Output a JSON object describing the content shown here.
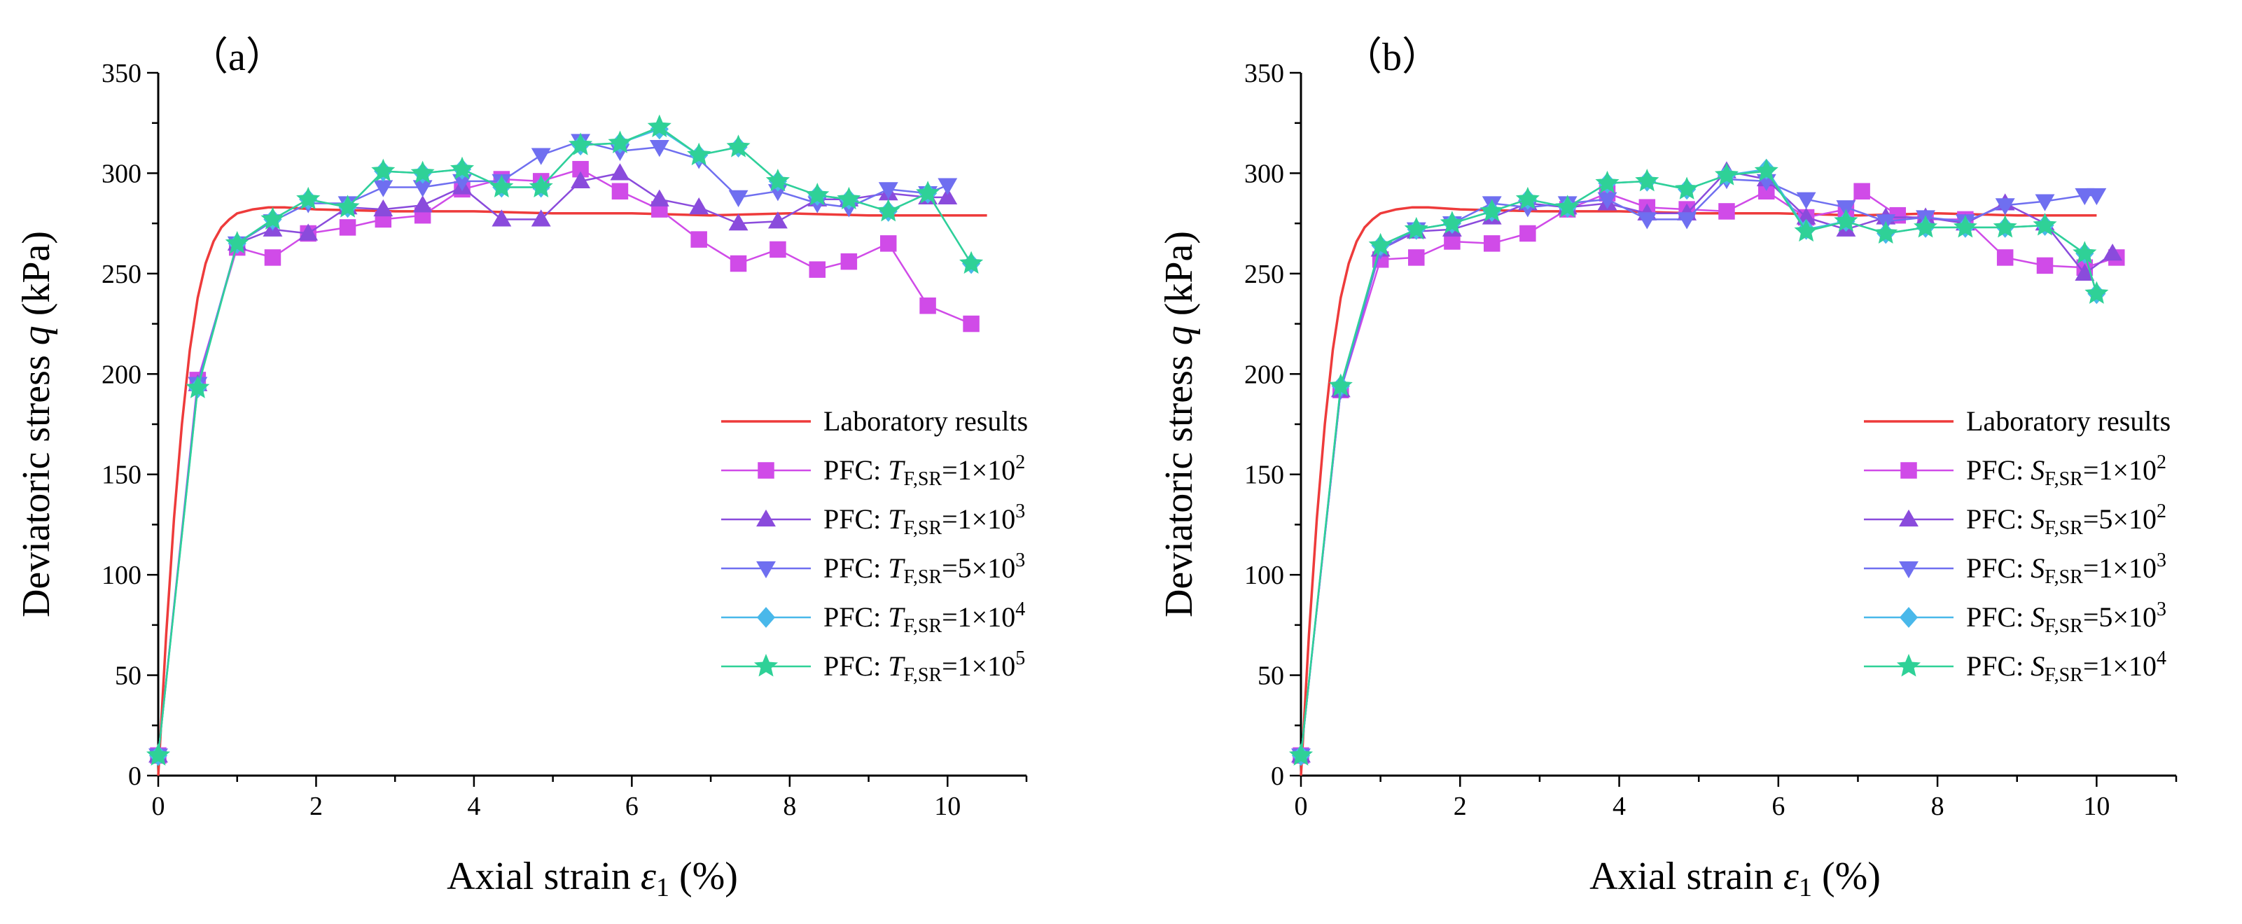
{
  "colors": {
    "laboratory": "#ee3b3b",
    "magenta": "#d04be8",
    "purple": "#8a4bdc",
    "blue": "#6f6ff0",
    "cyan": "#49b8ea",
    "green": "#2fd197"
  },
  "chart_data": [
    {
      "type": "line",
      "panel_label": "（a）",
      "xlabel": "Axial strain",
      "xlabel_symbol": "ε",
      "xlabel_sub": "1",
      "xlabel_unit": "(%)",
      "ylabel": "Deviatoric stress",
      "ylabel_symbol": "q",
      "ylabel_unit": "(kPa)",
      "xlim": [
        0,
        11
      ],
      "ylim": [
        0,
        350
      ],
      "xticks": [
        0,
        2,
        4,
        6,
        8,
        10
      ],
      "yticks": [
        0,
        50,
        100,
        150,
        200,
        250,
        300,
        350
      ],
      "legend_position": "right",
      "series": [
        {
          "name": "Laboratory results",
          "color": "laboratory",
          "marker": "none",
          "x": [
            0,
            0.1,
            0.2,
            0.3,
            0.4,
            0.5,
            0.6,
            0.7,
            0.8,
            0.9,
            1.0,
            1.2,
            1.4,
            1.6,
            2,
            3,
            4,
            5,
            6,
            7,
            8,
            9,
            10,
            10.5
          ],
          "y": [
            0,
            70,
            128,
            175,
            212,
            238,
            255,
            266,
            273,
            277,
            280,
            282,
            283,
            283,
            282,
            281,
            281,
            280,
            280,
            279,
            280,
            279,
            279,
            279
          ]
        },
        {
          "name": "PFC: T_F,SR=1×10^2",
          "prefix": "PFC: ",
          "var": "T",
          "sub": "F,SR",
          "mid": "=1×10",
          "exp": "2",
          "color": "magenta",
          "marker": "square",
          "x": [
            0,
            0.5,
            1.0,
            1.45,
            1.9,
            2.4,
            2.85,
            3.35,
            3.85,
            4.35,
            4.85,
            5.35,
            5.85,
            6.35,
            6.85,
            7.35,
            7.85,
            8.35,
            8.75,
            9.25,
            9.75,
            10.3
          ],
          "y": [
            10,
            197,
            263,
            258,
            270,
            273,
            277,
            279,
            292,
            297,
            296,
            302,
            291,
            282,
            267,
            255,
            262,
            252,
            256,
            265,
            234,
            225
          ]
        },
        {
          "name": "PFC: T_F,SR=1×10^3",
          "prefix": "PFC: ",
          "var": "T",
          "sub": "F,SR",
          "mid": "=1×10",
          "exp": "3",
          "color": "purple",
          "marker": "triangle-up",
          "x": [
            0,
            0.5,
            1.0,
            1.45,
            1.9,
            2.4,
            2.85,
            3.35,
            3.85,
            4.35,
            4.85,
            5.35,
            5.85,
            6.35,
            6.85,
            7.35,
            7.85,
            8.35,
            8.75,
            9.25,
            9.75,
            10.0
          ],
          "y": [
            10,
            195,
            265,
            272,
            270,
            283,
            282,
            284,
            293,
            277,
            277,
            296,
            300,
            287,
            283,
            275,
            276,
            287,
            287,
            290,
            288,
            288
          ]
        },
        {
          "name": "PFC: T_F,SR=5×10^3",
          "prefix": "PFC: ",
          "var": "T",
          "sub": "F,SR",
          "mid": "=5×10",
          "exp": "3",
          "color": "blue",
          "marker": "triangle-down",
          "x": [
            0,
            0.5,
            1.0,
            1.45,
            1.9,
            2.4,
            2.85,
            3.35,
            3.85,
            4.35,
            4.85,
            5.35,
            5.85,
            6.35,
            6.85,
            7.35,
            7.85,
            8.35,
            8.75,
            9.25,
            9.75,
            10.0
          ],
          "y": [
            10,
            195,
            265,
            276,
            285,
            285,
            293,
            293,
            296,
            296,
            309,
            316,
            311,
            313,
            307,
            288,
            291,
            285,
            283,
            292,
            290,
            294
          ]
        },
        {
          "name": "PFC: T_F,SR=1×10^4",
          "prefix": "PFC: ",
          "var": "T",
          "sub": "F,SR",
          "mid": "=1×10",
          "exp": "4",
          "color": "cyan",
          "marker": "diamond",
          "x": [
            0,
            0.5,
            1.0,
            1.45,
            1.9,
            2.4,
            2.85,
            3.35,
            3.85,
            4.35,
            4.85,
            5.35,
            5.85,
            6.35,
            6.85,
            7.35,
            7.85,
            8.35,
            8.75,
            9.25,
            9.75,
            10.3
          ],
          "y": [
            10,
            193,
            265,
            277,
            287,
            283,
            301,
            300,
            302,
            293,
            293,
            314,
            315,
            322,
            309,
            313,
            296,
            289,
            287,
            281,
            290,
            255
          ]
        },
        {
          "name": "PFC: T_F,SR=1×10^5",
          "prefix": "PFC: ",
          "var": "T",
          "sub": "F,SR",
          "mid": "=1×10",
          "exp": "5",
          "color": "green",
          "marker": "star",
          "x": [
            0,
            0.5,
            1.0,
            1.45,
            1.9,
            2.4,
            2.85,
            3.35,
            3.85,
            4.35,
            4.85,
            5.35,
            5.85,
            6.35,
            6.85,
            7.35,
            7.85,
            8.35,
            8.75,
            9.25,
            9.75,
            10.3
          ],
          "y": [
            10,
            193,
            265,
            277,
            287,
            283,
            301,
            300,
            302,
            293,
            293,
            314,
            315,
            323,
            309,
            313,
            296,
            289,
            287,
            281,
            290,
            255
          ]
        }
      ]
    },
    {
      "type": "line",
      "panel_label": "（b）",
      "xlabel": "Axial strain",
      "xlabel_symbol": "ε",
      "xlabel_sub": "1",
      "xlabel_unit": "(%)",
      "ylabel": "Deviatoric stress",
      "ylabel_symbol": "q",
      "ylabel_unit": "(kPa)",
      "xlim": [
        0,
        11
      ],
      "ylim": [
        0,
        350
      ],
      "xticks": [
        0,
        2,
        4,
        6,
        8,
        10
      ],
      "yticks": [
        0,
        50,
        100,
        150,
        200,
        250,
        300,
        350
      ],
      "legend_position": "right",
      "series": [
        {
          "name": "Laboratory results",
          "color": "laboratory",
          "marker": "none",
          "x": [
            0,
            0.1,
            0.2,
            0.3,
            0.4,
            0.5,
            0.6,
            0.7,
            0.8,
            0.9,
            1.0,
            1.2,
            1.4,
            1.6,
            2,
            3,
            4,
            5,
            6,
            7,
            8,
            9,
            10
          ],
          "y": [
            0,
            70,
            128,
            175,
            212,
            238,
            255,
            266,
            273,
            277,
            280,
            282,
            283,
            283,
            282,
            281,
            281,
            280,
            280,
            279,
            280,
            279,
            279
          ]
        },
        {
          "name": "PFC: S_F,SR=1×10^2",
          "prefix": "PFC: ",
          "var": "S",
          "sub": "F,SR",
          "mid": "=1×10",
          "exp": "2",
          "color": "magenta",
          "marker": "square",
          "x": [
            0,
            0.5,
            1.0,
            1.45,
            1.9,
            2.4,
            2.85,
            3.35,
            3.85,
            4.35,
            4.85,
            5.35,
            5.85,
            6.35,
            6.85,
            7.05,
            7.5,
            7.85,
            8.35,
            8.85,
            9.35,
            9.85,
            10.25
          ],
          "y": [
            10,
            192,
            257,
            258,
            266,
            265,
            270,
            282,
            290,
            283,
            282,
            281,
            291,
            278,
            282,
            291,
            279,
            277,
            277,
            258,
            254,
            253,
            258
          ]
        },
        {
          "name": "PFC: S_F,SR=5×10^2",
          "prefix": "PFC: ",
          "var": "S",
          "sub": "F,SR",
          "mid": "=5×10",
          "exp": "2",
          "color": "purple",
          "marker": "triangle-up",
          "x": [
            0,
            0.5,
            1.0,
            1.45,
            1.9,
            2.4,
            2.85,
            3.35,
            3.85,
            4.35,
            4.85,
            5.35,
            5.85,
            6.35,
            6.85,
            7.35,
            7.85,
            8.35,
            8.85,
            9.35,
            9.85,
            10.2
          ],
          "y": [
            10,
            192,
            262,
            271,
            272,
            278,
            285,
            283,
            285,
            280,
            280,
            301,
            297,
            278,
            272,
            278,
            278,
            275,
            285,
            275,
            250,
            260
          ]
        },
        {
          "name": "PFC: S_F,SR=1×10^3",
          "prefix": "PFC: ",
          "var": "S",
          "sub": "F,SR",
          "mid": "=1×10",
          "exp": "3",
          "color": "blue",
          "marker": "triangle-down",
          "x": [
            0,
            0.5,
            1.0,
            1.45,
            1.9,
            2.4,
            2.85,
            3.35,
            3.85,
            4.35,
            4.85,
            5.35,
            5.85,
            6.35,
            6.85,
            7.35,
            7.85,
            8.35,
            8.85,
            9.35,
            9.85,
            10.0
          ],
          "y": [
            10,
            192,
            262,
            272,
            275,
            285,
            283,
            285,
            287,
            277,
            277,
            297,
            296,
            287,
            283,
            276,
            278,
            276,
            284,
            286,
            289,
            289
          ]
        },
        {
          "name": "PFC: S_F,SR=5×10^3",
          "prefix": "PFC: ",
          "var": "S",
          "sub": "F,SR",
          "mid": "=5×10",
          "exp": "3",
          "color": "cyan",
          "marker": "diamond",
          "x": [
            0,
            0.5,
            1.0,
            1.45,
            1.9,
            2.4,
            2.85,
            3.35,
            3.85,
            4.35,
            4.85,
            5.35,
            5.85,
            6.35,
            6.85,
            7.35,
            7.85,
            8.35,
            8.85,
            9.35,
            9.85,
            10.0
          ],
          "y": [
            10,
            194,
            264,
            272,
            275,
            281,
            287,
            283,
            295,
            296,
            292,
            299,
            302,
            272,
            276,
            270,
            273,
            273,
            273,
            274,
            260,
            240
          ]
        },
        {
          "name": "PFC: S_F,SR=1×10^4",
          "prefix": "PFC: ",
          "var": "S",
          "sub": "F,SR",
          "mid": "=1×10",
          "exp": "4",
          "color": "green",
          "marker": "star",
          "x": [
            0,
            0.5,
            1.0,
            1.45,
            1.9,
            2.4,
            2.85,
            3.35,
            3.85,
            4.35,
            4.85,
            5.35,
            5.85,
            6.35,
            6.85,
            7.35,
            7.85,
            8.35,
            8.85,
            9.35,
            9.85,
            10.0
          ],
          "y": [
            10,
            194,
            264,
            272,
            275,
            281,
            287,
            283,
            295,
            296,
            292,
            299,
            301,
            271,
            276,
            270,
            273,
            273,
            273,
            274,
            260,
            240
          ]
        }
      ]
    }
  ]
}
